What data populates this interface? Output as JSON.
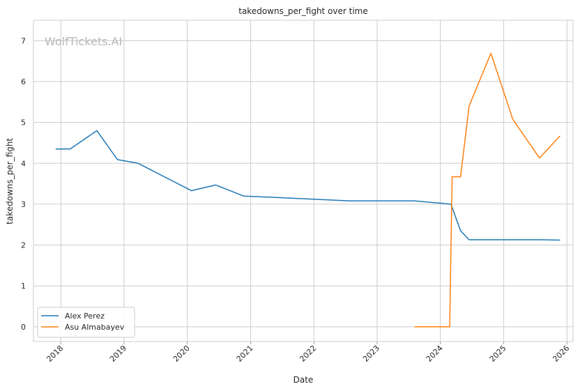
{
  "chart_data": {
    "type": "line",
    "title": "takedowns_per_fight over time",
    "xlabel": "Date",
    "ylabel": "takedowns_per_fight",
    "watermark": "WolfTickets.AI",
    "x_ticks": [
      "2018",
      "2019",
      "2020",
      "2021",
      "2022",
      "2023",
      "2024",
      "2025",
      "2026"
    ],
    "y_ticks": [
      "0",
      "1",
      "2",
      "3",
      "4",
      "5",
      "6",
      "7"
    ],
    "xlim": [
      "2017-07-27",
      "2026-02-05"
    ],
    "ylim": [
      -0.36,
      7.5
    ],
    "grid": true,
    "legend_position": "lower-left",
    "series": [
      {
        "name": "Alex Perez",
        "color": "#1f77b4",
        "points": [
          [
            "2017-12-02",
            4.35
          ],
          [
            "2018-02-24",
            4.35
          ],
          [
            "2018-07-28",
            4.8
          ],
          [
            "2018-11-24",
            4.09
          ],
          [
            "2019-03-23",
            4.0
          ],
          [
            "2020-01-25",
            3.33
          ],
          [
            "2020-06-13",
            3.47
          ],
          [
            "2020-11-21",
            3.2
          ],
          [
            "2022-07-30",
            3.08
          ],
          [
            "2023-08-05",
            3.08
          ],
          [
            "2024-03-02",
            3.0
          ],
          [
            "2024-04-27",
            2.35
          ],
          [
            "2024-06-15",
            2.13
          ],
          [
            "2025-08-02",
            2.13
          ],
          [
            "2025-11-22",
            2.12
          ]
        ]
      },
      {
        "name": "Asu Almabayev",
        "color": "#ff7f0e",
        "points": [
          [
            "2023-08-05",
            0.0
          ],
          [
            "2024-02-24",
            0.0
          ],
          [
            "2024-03-09",
            3.67
          ],
          [
            "2024-04-27",
            3.67
          ],
          [
            "2024-06-15",
            5.4
          ],
          [
            "2024-10-19",
            6.69
          ],
          [
            "2025-02-22",
            5.08
          ],
          [
            "2025-07-26",
            4.13
          ],
          [
            "2025-11-22",
            4.67
          ]
        ]
      }
    ]
  }
}
